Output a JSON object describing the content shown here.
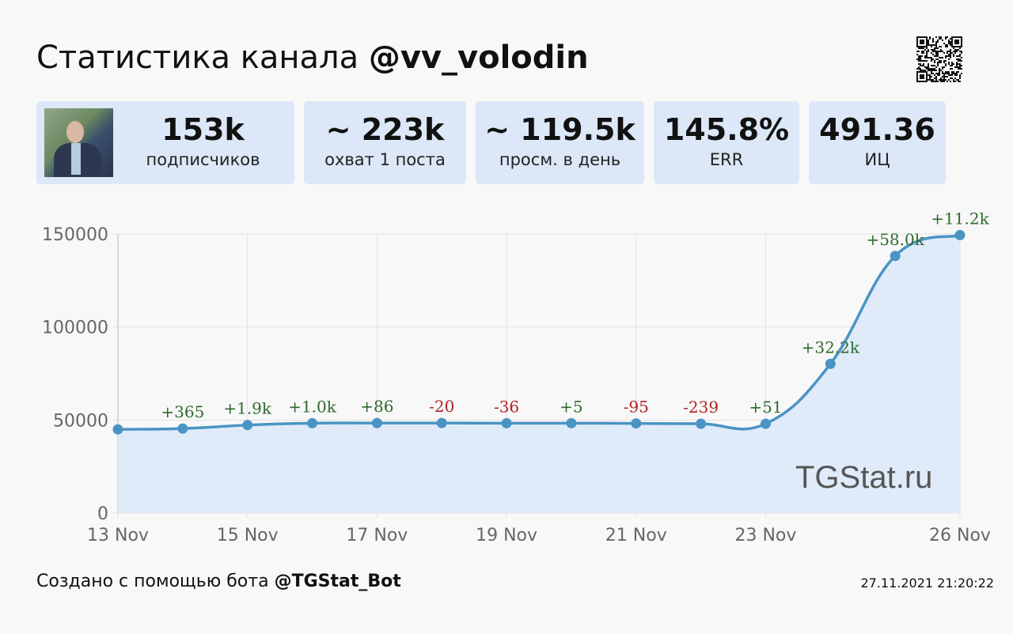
{
  "header": {
    "title_prefix": "Статистика канала",
    "channel": "@vv_volodin"
  },
  "stats": [
    {
      "value": "153k",
      "label": "подписчиков"
    },
    {
      "value": "~ 223k",
      "label": "охват 1 поста"
    },
    {
      "value": "~ 119.5k",
      "label": "просм. в день"
    },
    {
      "value": "145.8%",
      "label": "ERR"
    },
    {
      "value": "491.36",
      "label": "ИЦ"
    }
  ],
  "watermark": "TGStat.ru",
  "footer": {
    "prefix": "Создано с помощью бота",
    "bot": "@TGStat_Bot",
    "timestamp": "27.11.2021 21:20:22"
  },
  "colors": {
    "line": "#4a94c4",
    "fill": "#dde9f9",
    "positive": "#2e6b2e",
    "negative": "#b22222",
    "card": "#dce7f7"
  },
  "chart_data": {
    "type": "area",
    "title": "",
    "xlabel": "",
    "ylabel": "",
    "x": [
      "13 Nov",
      "14 Nov",
      "15 Nov",
      "16 Nov",
      "17 Nov",
      "18 Nov",
      "19 Nov",
      "20 Nov",
      "21 Nov",
      "22 Nov",
      "23 Nov",
      "24 Nov",
      "25 Nov",
      "26 Nov"
    ],
    "values": [
      45000,
      45400,
      47300,
      48300,
      48400,
      48400,
      48300,
      48300,
      48200,
      48000,
      48000,
      80200,
      138200,
      149400
    ],
    "deltas": [
      "",
      "+365",
      "+1.9k",
      "+1.0k",
      "+86",
      "-20",
      "-36",
      "+5",
      "-95",
      "-239",
      "+51",
      "+32.2k",
      "+58.0k",
      "+11.2k"
    ],
    "xticks": [
      "13 Nov",
      "15 Nov",
      "17 Nov",
      "19 Nov",
      "21 Nov",
      "23 Nov",
      "26 Nov"
    ],
    "yticks": [
      "0",
      "50000",
      "100000",
      "150000"
    ],
    "ylim": [
      0,
      150000
    ],
    "grid": true,
    "legend": "none"
  }
}
